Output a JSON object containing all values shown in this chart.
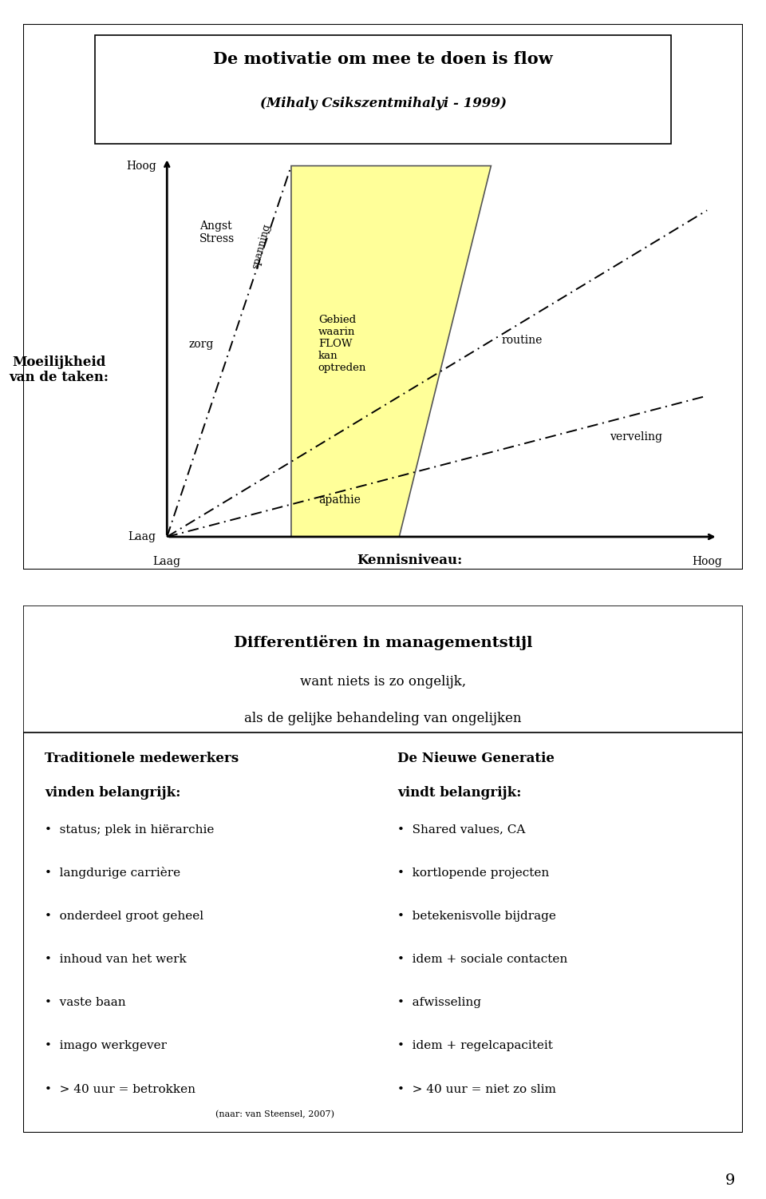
{
  "title_line1": "De motivatie om mee te doen is flow",
  "title_line2": "(Mihaly Csikszentmihalyi - 1999)",
  "ylabel": "Moeilijkheid\nvan de taken:",
  "xlabel": "Kennisniveau:",
  "y_hoog": "Hoog",
  "y_laag": "Laag",
  "x_laag": "Laag",
  "x_hoog": "Hoog",
  "labels": {
    "angst_stress": "Angst\nStress",
    "spanning": "spanning",
    "gebied": "Gebied\nwaarin\nFLOW\nkan\noptreden",
    "routine": "routine",
    "verveling": "verveling",
    "zorg": "zorg",
    "apathie": "apathie"
  },
  "flow_color": "#FFFF99",
  "flow_edge_color": "#555555",
  "bg_color": "#ffffff",
  "second_title": "Differentiëren in managementstijl",
  "second_sub1": "want niets is zo ongelijk,",
  "second_sub2": "als de gelijke behandeling van ongelijken",
  "col1_header1": "Traditionele medewerkers",
  "col1_header2": "vinden belangrijk:",
  "col1_items": [
    "status; plek in hiërarchie",
    "langdurige carrière",
    "onderdeel groot geheel",
    "inhoud van het werk",
    "vaste baan",
    "imago werkgever",
    "> 40 uur = betrokken"
  ],
  "col2_header1": "De Nieuwe Generatie",
  "col2_header2": "vindt belangrijk:",
  "col2_items": [
    "Shared values, CA",
    "kortlopende projecten",
    "betekenisvolle bijdrage",
    "idem + sociale contacten",
    "afwisseling",
    "idem + regelcapaciteit",
    "> 40 uur = niet zo slim"
  ],
  "footnote": "(naar: van Steensel, 2007)",
  "page_number": "9"
}
